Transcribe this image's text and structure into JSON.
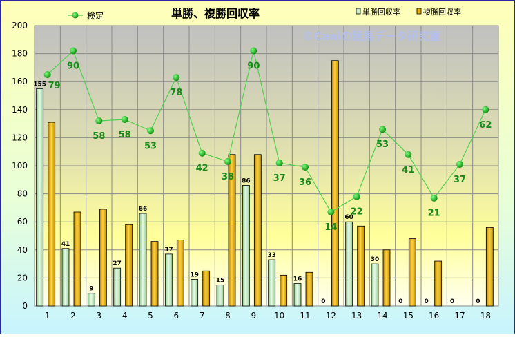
{
  "chart_data": {
    "type": "bar",
    "title": "単勝、複勝回収率",
    "watermark": "©Caniの競馬データ研究室",
    "categories": [
      "1",
      "2",
      "3",
      "4",
      "5",
      "6",
      "7",
      "8",
      "9",
      "10",
      "11",
      "12",
      "13",
      "14",
      "15",
      "16",
      "17",
      "18"
    ],
    "ylim": [
      0,
      200
    ],
    "yticks": [
      "0",
      "20",
      "40",
      "60",
      "80",
      "100",
      "120",
      "140",
      "160",
      "180",
      "200"
    ],
    "grid": true,
    "legend_position": "top",
    "series": [
      {
        "name": "単勝回収率",
        "type": "bar",
        "color": "#c8ecc8",
        "values": [
          155,
          41,
          9,
          27,
          66,
          37,
          19,
          15,
          86,
          33,
          16,
          0,
          60,
          30,
          0,
          0,
          0,
          0
        ]
      },
      {
        "name": "複勝回収率",
        "type": "bar",
        "color": "#e8b000",
        "values": [
          131,
          67,
          69,
          58,
          46,
          47,
          25,
          108,
          108,
          22,
          24,
          175,
          57,
          40,
          48,
          32,
          0,
          56
        ]
      },
      {
        "name": "検定",
        "type": "line",
        "color": "#22a022",
        "values": [
          165,
          182,
          132,
          133,
          125,
          163,
          109,
          103,
          182,
          102,
          99,
          67,
          78,
          126,
          108,
          77,
          101,
          140
        ],
        "labels": [
          "79",
          "90",
          "58",
          "58",
          "53",
          "78",
          "42",
          "38",
          "90",
          "37",
          "36",
          "14",
          "22",
          "53",
          "41",
          "21",
          "37",
          "62"
        ]
      }
    ]
  }
}
